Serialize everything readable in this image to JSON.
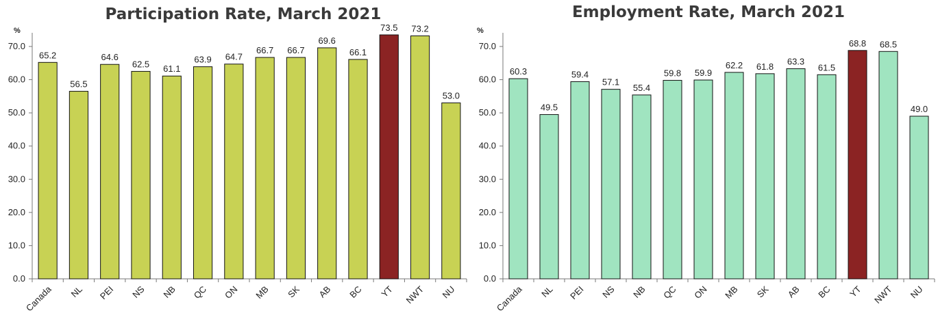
{
  "chart_data": [
    {
      "type": "bar",
      "title": "Participation Rate, March 2021",
      "unit": "%",
      "categories": [
        "Canada",
        "NL",
        "PEI",
        "NS",
        "NB",
        "QC",
        "ON",
        "MB",
        "SK",
        "AB",
        "BC",
        "YT",
        "NWT",
        "NU"
      ],
      "values": [
        65.2,
        56.5,
        64.6,
        62.5,
        61.1,
        63.9,
        64.7,
        66.7,
        66.7,
        69.6,
        66.1,
        73.5,
        73.2,
        53.0
      ],
      "value_labels": [
        "65.2",
        "56.5",
        "64.6",
        "62.5",
        "61.1",
        "63.9",
        "64.7",
        "66.7",
        "66.7",
        "69.6",
        "66.1",
        "73.5",
        "73.2",
        "53.0"
      ],
      "ylim": [
        0,
        70
      ],
      "yticks": [
        "0.0",
        "10.0",
        "20.0",
        "30.0",
        "40.0",
        "50.0",
        "60.0",
        "70.0"
      ],
      "bar_color": "#c8d254",
      "highlight_color": "#8b2323",
      "highlight_category": "YT",
      "grid": false
    },
    {
      "type": "bar",
      "title": "Employment Rate, March 2021",
      "unit": "%",
      "categories": [
        "Canada",
        "NL",
        "PEI",
        "NS",
        "NB",
        "QC",
        "ON",
        "MB",
        "SK",
        "AB",
        "BC",
        "YT",
        "NWT",
        "NU"
      ],
      "values": [
        60.3,
        49.5,
        59.4,
        57.1,
        55.4,
        59.8,
        59.9,
        62.2,
        61.8,
        63.3,
        61.5,
        68.8,
        68.5,
        49.0
      ],
      "value_labels": [
        "60.3",
        "49.5",
        "59.4",
        "57.1",
        "55.4",
        "59.8",
        "59.9",
        "62.2",
        "61.8",
        "63.3",
        "61.5",
        "68.8",
        "68.5",
        "49.0"
      ],
      "ylim": [
        0,
        70
      ],
      "yticks": [
        "0.0",
        "10.0",
        "20.0",
        "30.0",
        "40.0",
        "50.0",
        "60.0",
        "70.0"
      ],
      "bar_color": "#a0e4c0",
      "highlight_color": "#8b2323",
      "highlight_category": "YT",
      "grid": false
    }
  ]
}
